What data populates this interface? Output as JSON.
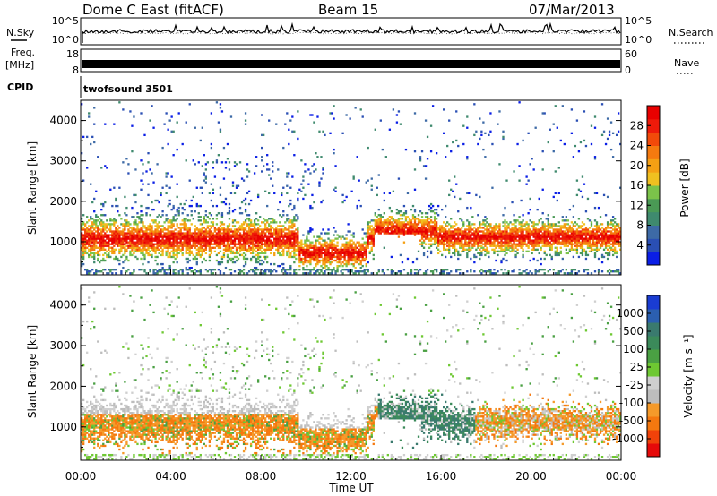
{
  "header": {
    "station": "Dome C East (fitACF)",
    "beam": "Beam 15",
    "date": "07/Mar/2013"
  },
  "strips": {
    "nsky_label": "N.Sky",
    "nsky_ticks": [
      "10^5",
      "10^0"
    ],
    "nsearch_label": "N.Search",
    "nsearch_ticks": [
      "10^5",
      "10^0"
    ],
    "freq_label": "Freq.",
    "freq_unit": "[MHz]",
    "freq_ticks": [
      "18",
      "8"
    ],
    "nave_label": "Nave",
    "nave_ticks": [
      "60",
      "0"
    ],
    "cpid_label": "CPID",
    "cpid_value": "twofsound 3501"
  },
  "colors": {
    "power": [
      "#0a1ee6",
      "#2a4fb4",
      "#3d6aa6",
      "#3f8a6e",
      "#4a9a55",
      "#7bc34a",
      "#f0c020",
      "#f5a014",
      "#f57a0f",
      "#f24a0a",
      "#ee1a0a",
      "#e80000"
    ],
    "velocity": [
      "#e60a0a",
      "#f0420a",
      "#f5780f",
      "#f59a2a",
      "#bdbdbd",
      "#cfcfcf",
      "#6ec832",
      "#4aa043",
      "#3b8a5a",
      "#3a7a6e",
      "#2b5fb0",
      "#1a3cd2"
    ]
  },
  "chart_data": [
    {
      "type": "heatmap",
      "name": "power",
      "xlabel": "",
      "ylabel": "Slant Range [km]",
      "x_range": [
        "00:00",
        "24:00"
      ],
      "y_range": [
        180,
        4500
      ],
      "yticks": [
        "1000",
        "2000",
        "3000",
        "4000"
      ],
      "colorbar_label": "Power [dB]",
      "colorbar_ticks": [
        "4",
        "8",
        "12",
        "16",
        "20",
        "24",
        "28"
      ],
      "colorbar_range": [
        0,
        32
      ]
    },
    {
      "type": "heatmap",
      "name": "velocity",
      "xlabel": "Time UT",
      "ylabel": "Slant Range [km]",
      "x_range": [
        "00:00",
        "24:00"
      ],
      "y_range": [
        180,
        4500
      ],
      "yticks": [
        "1000",
        "2000",
        "3000",
        "4000"
      ],
      "xticks": [
        "00:00",
        "04:00",
        "08:00",
        "12:00",
        "16:00",
        "20:00",
        "00:00"
      ],
      "colorbar_label": "Velocity [m s⁻¹]",
      "colorbar_ticks": [
        "1000",
        "500",
        "100",
        "25",
        "-25",
        "-100",
        "-500",
        "-1000"
      ]
    }
  ]
}
